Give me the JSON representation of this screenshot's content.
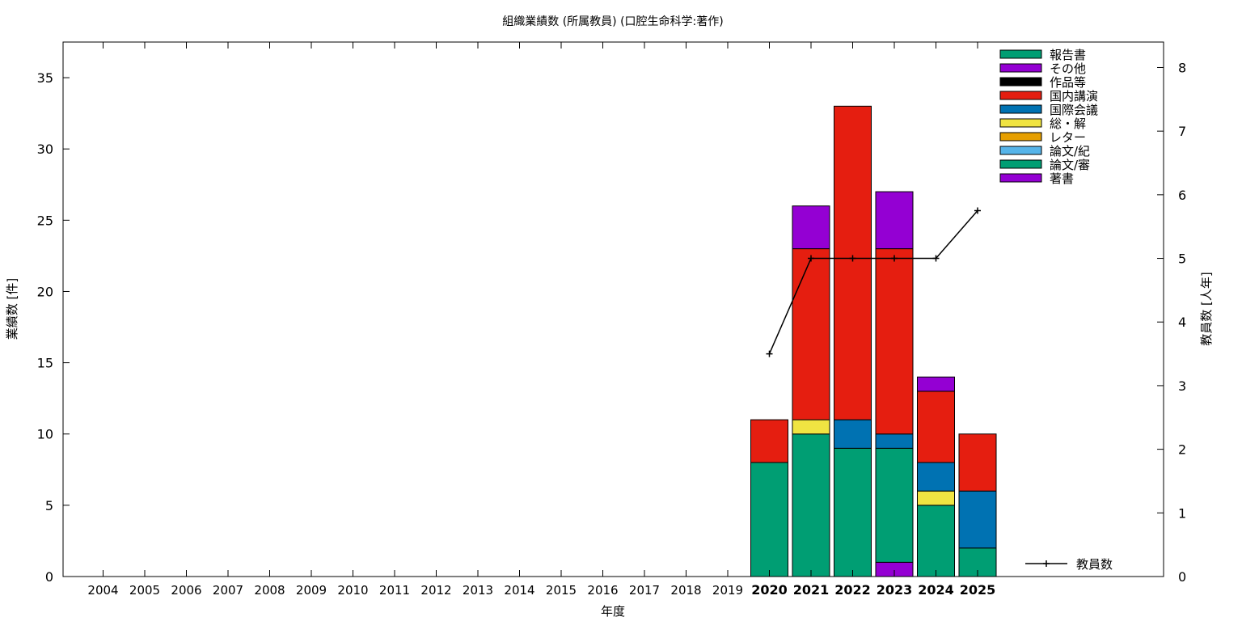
{
  "chart_data": {
    "type": "bar",
    "stacked": true,
    "title": "組織業績数 (所属教員) (口腔生命科学:著作)",
    "xlabel": "年度",
    "ylabel": "業績数 [件]",
    "y2label": "教員数 [人年]",
    "ylim": [
      0,
      37.5
    ],
    "y2lim": [
      0,
      8.4
    ],
    "yticks": [
      0,
      5,
      10,
      15,
      20,
      25,
      30,
      35
    ],
    "y2ticks": [
      0,
      1,
      2,
      3,
      4,
      5,
      6,
      7,
      8
    ],
    "grid": false,
    "legend_position": "top-right",
    "categories": [
      "2004",
      "2005",
      "2006",
      "2007",
      "2008",
      "2009",
      "2010",
      "2011",
      "2012",
      "2013",
      "2014",
      "2015",
      "2016",
      "2017",
      "2018",
      "2019",
      "2020",
      "2021",
      "2022",
      "2023",
      "2024",
      "2025"
    ],
    "series": [
      {
        "name": "著書",
        "color": "#9400d3",
        "values": [
          0,
          0,
          0,
          0,
          0,
          0,
          0,
          0,
          0,
          0,
          0,
          0,
          0,
          0,
          0,
          0,
          0,
          0,
          0,
          1,
          0,
          0
        ]
      },
      {
        "name": "論文/審",
        "color": "#009e73",
        "values": [
          0,
          0,
          0,
          0,
          0,
          0,
          0,
          0,
          0,
          0,
          0,
          0,
          0,
          0,
          0,
          0,
          8,
          10,
          9,
          8,
          5,
          2
        ]
      },
      {
        "name": "論文/紀",
        "color": "#56b4e9",
        "values": [
          0,
          0,
          0,
          0,
          0,
          0,
          0,
          0,
          0,
          0,
          0,
          0,
          0,
          0,
          0,
          0,
          0,
          0,
          0,
          0,
          0,
          0
        ]
      },
      {
        "name": "レター",
        "color": "#e69f00",
        "values": [
          0,
          0,
          0,
          0,
          0,
          0,
          0,
          0,
          0,
          0,
          0,
          0,
          0,
          0,
          0,
          0,
          0,
          0,
          0,
          0,
          0,
          0
        ]
      },
      {
        "name": "総・解",
        "color": "#f0e442",
        "values": [
          0,
          0,
          0,
          0,
          0,
          0,
          0,
          0,
          0,
          0,
          0,
          0,
          0,
          0,
          0,
          0,
          0,
          1,
          0,
          0,
          1,
          0
        ]
      },
      {
        "name": "国際会議",
        "color": "#0072b2",
        "values": [
          0,
          0,
          0,
          0,
          0,
          0,
          0,
          0,
          0,
          0,
          0,
          0,
          0,
          0,
          0,
          0,
          0,
          0,
          2,
          1,
          2,
          4
        ]
      },
      {
        "name": "国内講演",
        "color": "#e51e10",
        "values": [
          0,
          0,
          0,
          0,
          0,
          0,
          0,
          0,
          0,
          0,
          0,
          0,
          0,
          0,
          0,
          0,
          3,
          12,
          22,
          13,
          5,
          4
        ]
      },
      {
        "name": "作品等",
        "color": "#000000",
        "values": [
          0,
          0,
          0,
          0,
          0,
          0,
          0,
          0,
          0,
          0,
          0,
          0,
          0,
          0,
          0,
          0,
          0,
          0,
          0,
          0,
          0,
          0
        ]
      },
      {
        "name": "その他",
        "color": "#9400d3",
        "values": [
          0,
          0,
          0,
          0,
          0,
          0,
          0,
          0,
          0,
          0,
          0,
          0,
          0,
          0,
          0,
          0,
          0,
          3,
          0,
          4,
          1,
          0
        ]
      },
      {
        "name": "報告書",
        "color": "#009e73",
        "values": [
          0,
          0,
          0,
          0,
          0,
          0,
          0,
          0,
          0,
          0,
          0,
          0,
          0,
          0,
          0,
          0,
          0,
          0,
          0,
          0,
          0,
          0
        ]
      }
    ],
    "line_series": {
      "name": "教員数",
      "axis": "y2",
      "color": "#000000",
      "x": [
        "2020",
        "2021",
        "2022",
        "2023",
        "2024",
        "2025"
      ],
      "values": [
        3.5,
        5.0,
        5.0,
        5.0,
        5.0,
        5.75
      ]
    },
    "bold_categories": [
      "2020",
      "2021",
      "2022",
      "2023",
      "2024",
      "2025"
    ]
  }
}
